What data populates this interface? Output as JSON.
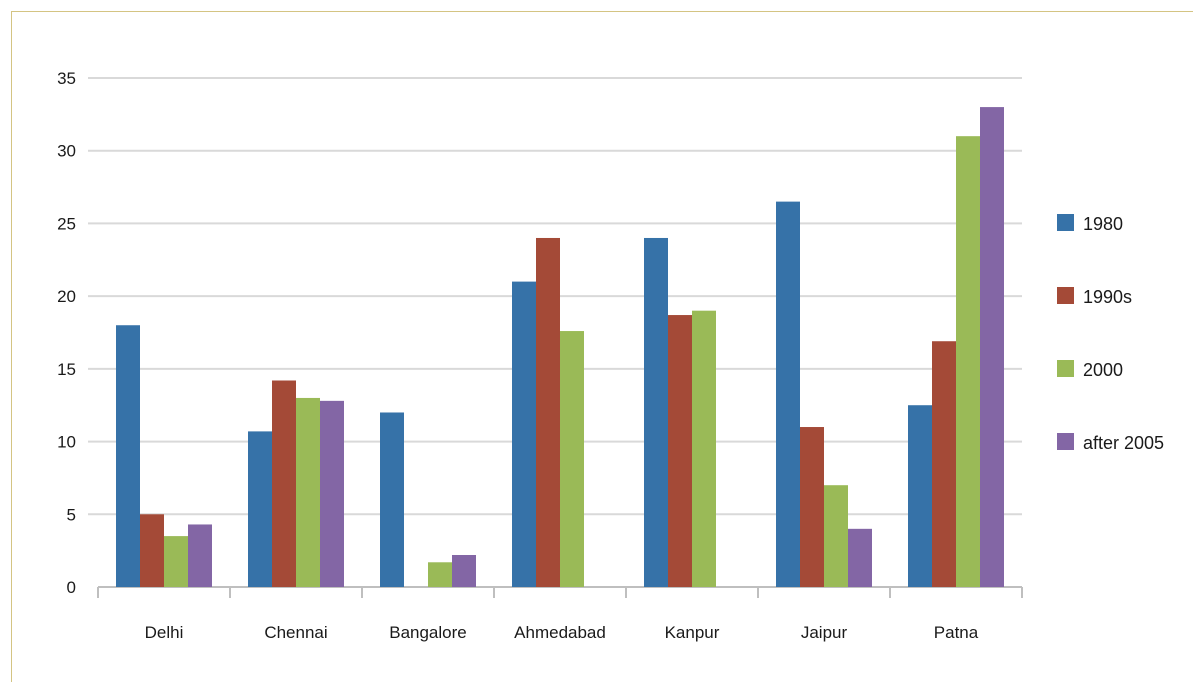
{
  "chart_data": {
    "type": "bar",
    "categories": [
      "Delhi",
      "Chennai",
      "Bangalore",
      "Ahmedabad",
      "Kanpur",
      "Jaipur",
      "Patna"
    ],
    "series": [
      {
        "name": "1980",
        "color": "#3672a8",
        "values": [
          18,
          10.7,
          12,
          21,
          24,
          26.5,
          12.5
        ]
      },
      {
        "name": "1990s",
        "color": "#a44a37",
        "values": [
          5,
          14.2,
          null,
          24,
          18.7,
          11,
          16.9
        ]
      },
      {
        "name": "2000",
        "color": "#9aba57",
        "values": [
          3.5,
          13,
          1.7,
          17.6,
          19,
          7,
          31
        ]
      },
      {
        "name": "after 2005",
        "color": "#8366a5",
        "values": [
          4.3,
          12.8,
          2.2,
          null,
          null,
          4,
          33
        ]
      }
    ],
    "ylim": [
      0,
      35
    ],
    "yticks": [
      0,
      5,
      10,
      15,
      20,
      25,
      30,
      35
    ],
    "grid": true,
    "legend_position": "right"
  }
}
